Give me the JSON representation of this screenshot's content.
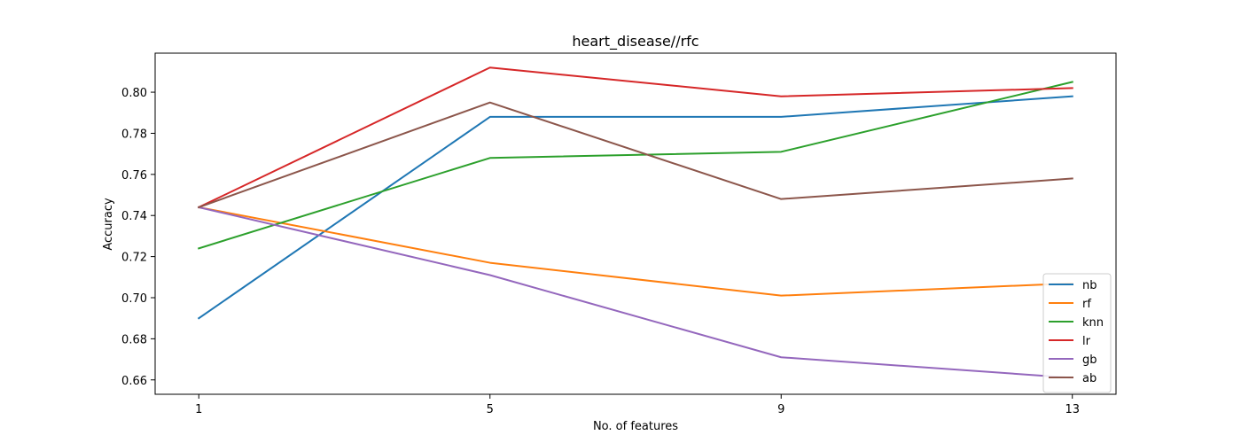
{
  "chart_data": {
    "type": "line",
    "title": "heart_disease//rfc",
    "xlabel": "No. of features",
    "ylabel": "Accuracy",
    "x": [
      1,
      5,
      9,
      13
    ],
    "xticks": [
      1,
      5,
      9,
      13
    ],
    "yticks": [
      0.66,
      0.68,
      0.7,
      0.72,
      0.74,
      0.76,
      0.78,
      0.8
    ],
    "ytick_labels": [
      "0.66",
      "0.68",
      "0.70",
      "0.72",
      "0.74",
      "0.76",
      "0.78",
      "0.80"
    ],
    "xlim": [
      0.4,
      13.6
    ],
    "ylim": [
      0.653,
      0.819
    ],
    "grid": false,
    "legend_position": "lower-right",
    "series": [
      {
        "name": "nb",
        "color": "#1f77b4",
        "values": [
          0.69,
          0.788,
          0.788,
          0.798
        ]
      },
      {
        "name": "rf",
        "color": "#ff7f0e",
        "values": [
          0.744,
          0.717,
          0.701,
          0.707
        ]
      },
      {
        "name": "knn",
        "color": "#2ca02c",
        "values": [
          0.724,
          0.768,
          0.771,
          0.805
        ]
      },
      {
        "name": "lr",
        "color": "#d62728",
        "values": [
          0.744,
          0.812,
          0.798,
          0.802
        ]
      },
      {
        "name": "gb",
        "color": "#9467bd",
        "values": [
          0.744,
          0.711,
          0.671,
          0.661
        ]
      },
      {
        "name": "ab",
        "color": "#8c564b",
        "values": [
          0.744,
          0.795,
          0.748,
          0.758
        ]
      }
    ]
  }
}
